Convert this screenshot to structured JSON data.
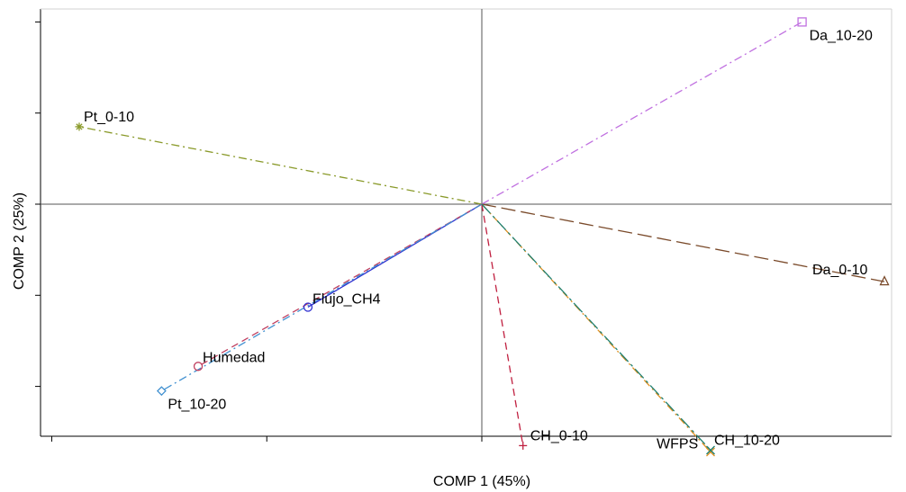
{
  "chart_data": {
    "type": "biplot",
    "xlabel": "COMP 1 (45%)",
    "ylabel": "COMP 2 (25%)",
    "xlim": [
      -4.5,
      4.5
    ],
    "ylim": [
      -2.55,
      2.1
    ],
    "grid": false,
    "reference_lines": {
      "x": 0,
      "y": 0
    },
    "vectors": [
      {
        "name": "Da_10-20",
        "x": 3.5,
        "y": 2.0,
        "marker": "square",
        "dash": "dashdot",
        "color": "#c070e0"
      },
      {
        "name": "Pt_0-10",
        "x": -4.4,
        "y": 0.85,
        "marker": "asterisk",
        "dash": "dashdot",
        "color": "#8a9a2a"
      },
      {
        "name": "Da_0-10",
        "x": 4.4,
        "y": -0.85,
        "marker": "triangle",
        "dash": "longdash",
        "color": "#7a4a2a"
      },
      {
        "name": "Flujo_CH4",
        "x": -1.9,
        "y": -1.13,
        "marker": "circle",
        "dash": "solid",
        "color": "#3030d0"
      },
      {
        "name": "Humedad",
        "x": -3.1,
        "y": -1.78,
        "marker": "circle",
        "dash": "dash",
        "color": "#c04060"
      },
      {
        "name": "Pt_10-20",
        "x": -3.5,
        "y": -2.05,
        "marker": "diamond",
        "dash": "dashdot",
        "color": "#4090d0"
      },
      {
        "name": "CH_0-10",
        "x": 0.45,
        "y": -2.65,
        "marker": "plus",
        "dash": "dash",
        "color": "#c02040"
      },
      {
        "name": "WFPS",
        "x": 2.5,
        "y": -2.72,
        "marker": "x",
        "dash": "dashdot",
        "color": "#e09020"
      },
      {
        "name": "CH_10-20",
        "x": 2.5,
        "y": -2.7,
        "marker": "x",
        "dash": "longdashdot",
        "color": "#208070"
      }
    ]
  }
}
